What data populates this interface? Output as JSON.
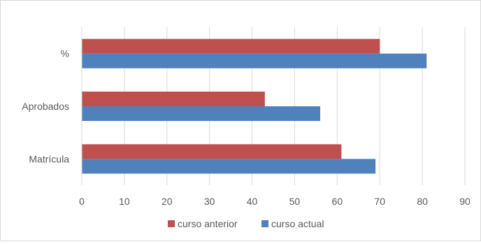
{
  "chart_data": {
    "type": "bar",
    "orientation": "horizontal",
    "categories": [
      "%",
      "Aprobados",
      "Matrícula"
    ],
    "series": [
      {
        "name": "curso anterior",
        "color": "#c0504d",
        "values": [
          70,
          43,
          61
        ]
      },
      {
        "name": "curso actual",
        "color": "#4f81bd",
        "values": [
          81,
          56,
          69
        ]
      }
    ],
    "xlim": [
      0,
      90
    ],
    "xticks": [
      0,
      10,
      20,
      30,
      40,
      50,
      60,
      70,
      80,
      90
    ],
    "grid": true,
    "legend_position": "bottom"
  }
}
